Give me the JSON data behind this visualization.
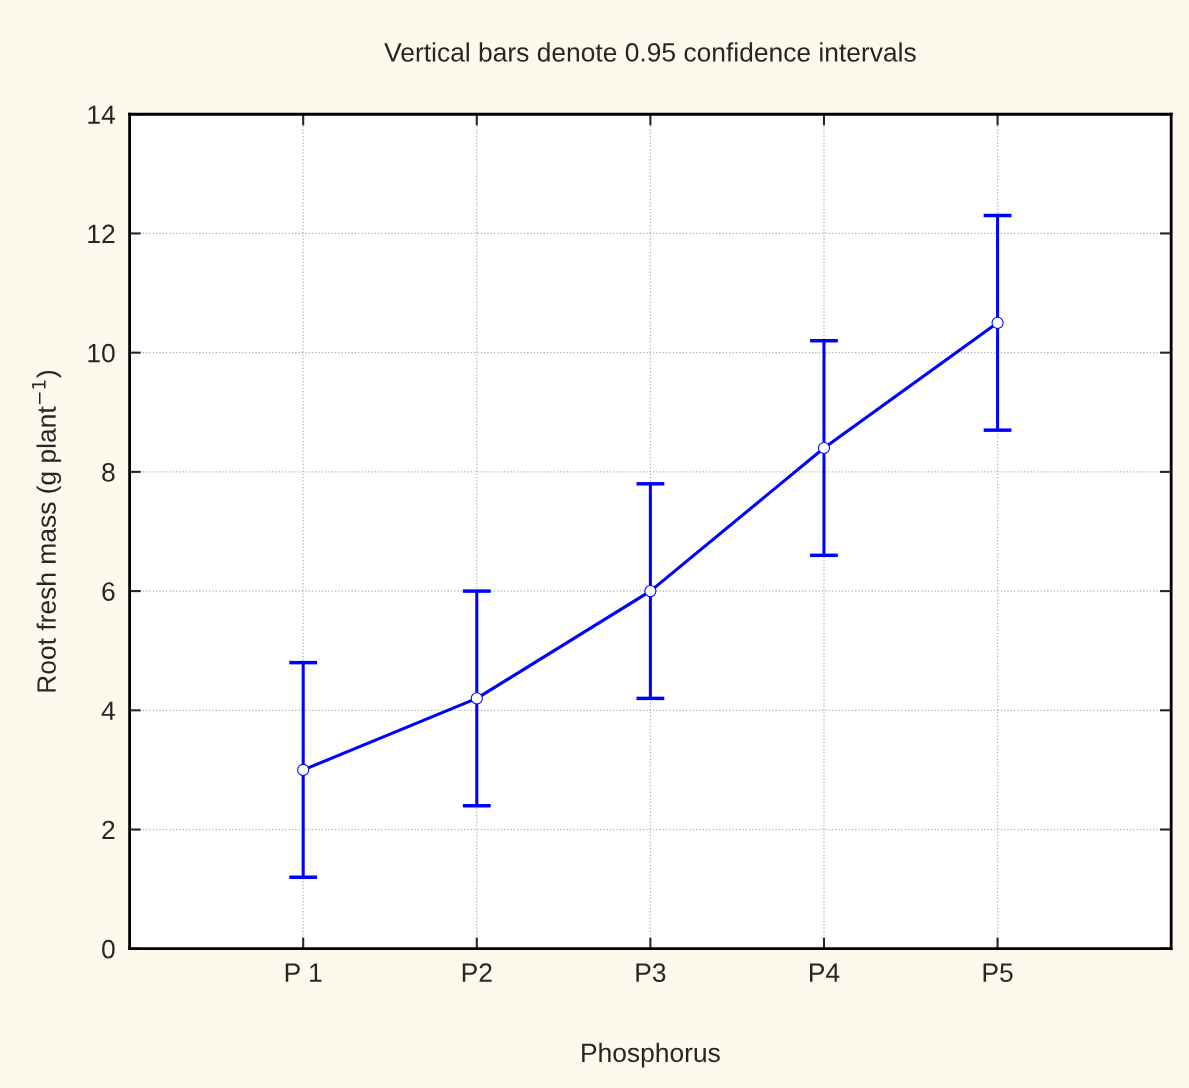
{
  "chart_data": {
    "type": "line",
    "title": "Vertical bars denote 0.95 confidence intervals",
    "xlabel": "Phosphorus",
    "ylabel": "Root fresh mass (g plant$^{−1}$)",
    "categories": [
      "P 1",
      "P2",
      "P3",
      "P4",
      "P5"
    ],
    "series": [
      {
        "color": "#0000ff",
        "values": [
          3.0,
          4.2,
          6.0,
          8.4,
          10.5
        ],
        "errors": [
          1.8,
          1.8,
          1.8,
          1.8,
          1.8
        ]
      }
    ],
    "ylim": [
      0,
      14
    ],
    "yticks": [
      0,
      2,
      4,
      6,
      8,
      10,
      12,
      14
    ],
    "grid": true,
    "marker": "circle",
    "line_style": "solid",
    "legend": false
  }
}
